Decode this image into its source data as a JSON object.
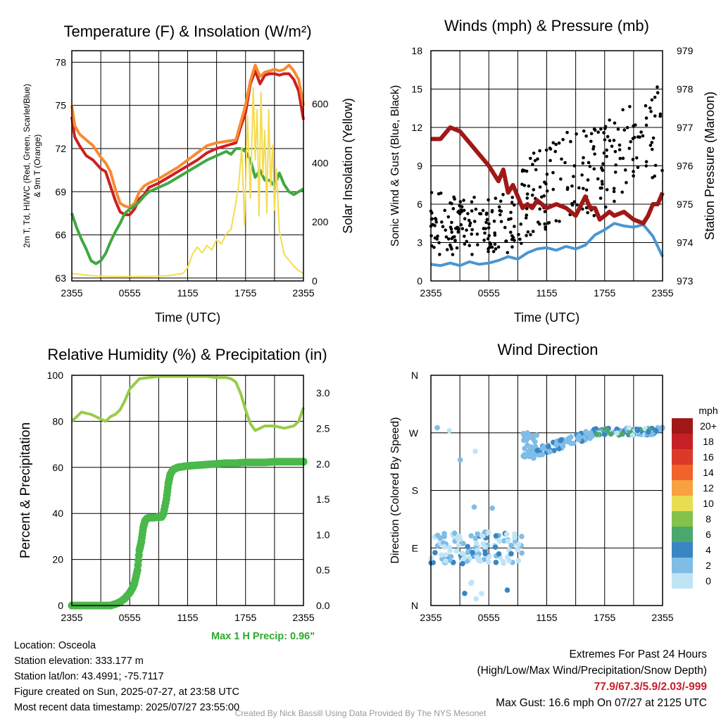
{
  "colors": {
    "red": "#cc2020",
    "green": "#40a840",
    "orange": "#f88a30",
    "yellow": "#f4dc50",
    "maroon": "#a01818",
    "blue": "#4a96d2",
    "black": "#000000",
    "extremes": "#c8202a",
    "rh": "#98cc48",
    "precip": "#4ab84a"
  },
  "footer": {
    "max_precip": "Max 1 H Precip: 0.96\"",
    "location": "Location: Osceola",
    "elevation": "Station elevation: 333.177 m",
    "latlon": "Station lat/lon: 43.4991; -75.7117",
    "created": "Figure created on Sun, 2025-07-27, at 23:58 UTC",
    "recent": "Most recent data timestamp: 2025/07/27 23:55:00",
    "extremes_title": "Extremes For Past 24 Hours",
    "extremes_subtitle": "(High/Low/Max Wind/Precipitation/Snow Depth)",
    "extremes_values": "77.9/67.3/5.9/2.03/-999",
    "max_gust": "Max Gust: 16.6 mph On 07/27 at 2125 UTC",
    "credit": "Created By Nick Bassill Using Data Provided By The NYS Mesonet"
  },
  "chart_data": [
    {
      "type": "line",
      "title": "Temperature (F) & Insolation (W/m²)",
      "xlabel": "Time (UTC)",
      "ylabel": "2m T, Td, HI/WC (Red, Green, Scarlet/Blue) & 9m T (Orange)",
      "y2label": "Solar Insolation (Yellow)",
      "x_ticks": [
        "2355",
        "0555",
        "1155",
        "1755",
        "2355"
      ],
      "xlim_hours": [
        0,
        24
      ],
      "ylim": [
        62.8,
        78.8
      ],
      "y_ticks": [
        63,
        66,
        69,
        72,
        75,
        78
      ],
      "y2lim": [
        0,
        780
      ],
      "y2_ticks": [
        0,
        200,
        400,
        600
      ],
      "grid": true,
      "series": [
        {
          "axis": "left",
          "color": "red",
          "x": [
            0,
            0.3,
            0.8,
            1.5,
            2.2,
            3,
            3.5,
            4,
            4.5,
            5,
            5.5,
            6,
            6.5,
            7,
            7.5,
            8,
            9,
            10,
            11,
            12,
            13,
            14,
            15,
            16,
            17,
            17.5,
            18,
            18.5,
            19,
            19.5,
            20,
            20.5,
            21,
            21.5,
            22,
            22.5,
            23,
            23.5,
            24
          ],
          "values": [
            74.2,
            72.8,
            72.2,
            71.5,
            71.2,
            70.6,
            70.4,
            69.4,
            68.4,
            67.6,
            67.4,
            67.4,
            67.8,
            68.5,
            68.8,
            69.3,
            69.6,
            70.0,
            70.4,
            70.8,
            71.2,
            71.7,
            72.0,
            72.2,
            72.4,
            73.5,
            74.5,
            76.5,
            77.4,
            76.5,
            77.1,
            77.2,
            77.2,
            77.1,
            77.2,
            77.2,
            76.8,
            76.0,
            74.0
          ]
        },
        {
          "axis": "left",
          "color": "orange",
          "x": [
            0,
            0.3,
            0.8,
            1.5,
            2.2,
            3,
            3.5,
            4,
            4.5,
            5,
            5.5,
            6,
            6.5,
            7,
            7.5,
            8,
            9,
            10,
            11,
            12,
            13,
            14,
            15,
            16,
            17,
            17.5,
            18,
            18.5,
            19,
            19.5,
            20,
            20.5,
            21,
            21.5,
            22,
            22.5,
            23,
            23.5,
            24
          ],
          "values": [
            75.0,
            73.6,
            73.0,
            72.6,
            72.2,
            71.4,
            71.0,
            70.4,
            69.2,
            68.2,
            68.0,
            67.9,
            68.2,
            69.0,
            69.4,
            69.6,
            69.9,
            70.3,
            70.7,
            71.2,
            71.7,
            72.2,
            72.4,
            72.5,
            72.6,
            73.8,
            75.0,
            76.7,
            77.8,
            77.0,
            77.3,
            77.4,
            77.5,
            77.4,
            77.5,
            77.8,
            77.4,
            76.8,
            75.0
          ]
        },
        {
          "axis": "left",
          "color": "green",
          "x": [
            0,
            0.5,
            1,
            1.5,
            2,
            2.5,
            3,
            3.5,
            4,
            4.5,
            5,
            5.5,
            6,
            6.5,
            7,
            7.5,
            8,
            9,
            10,
            11,
            12,
            13,
            14,
            15,
            16,
            16.5,
            17,
            17.5,
            18,
            18.5,
            19,
            19.5,
            20,
            20.5,
            21,
            21.5,
            22,
            22.5,
            23,
            23.5,
            24
          ],
          "values": [
            67.5,
            66.5,
            65.7,
            65.0,
            64.2,
            64.0,
            64.2,
            64.7,
            65.5,
            66.2,
            66.8,
            67.5,
            67.8,
            68.0,
            68.3,
            68.7,
            69.0,
            69.3,
            69.6,
            70.0,
            70.4,
            70.8,
            71.2,
            71.5,
            71.8,
            71.6,
            72.0,
            72.0,
            71.8,
            71.2,
            70.0,
            70.5,
            69.8,
            69.8,
            69.4,
            70.3,
            69.5,
            69.0,
            68.8,
            69.0,
            69.2
          ]
        },
        {
          "axis": "right",
          "color": "yellow",
          "x": [
            0,
            2,
            4,
            6,
            8,
            10,
            11.5,
            12,
            12.5,
            13,
            13.5,
            14,
            14.5,
            15,
            15.5,
            16,
            16.5,
            17,
            17.3,
            17.6,
            17.9,
            18.2,
            18.5,
            18.8,
            19.0,
            19.2,
            19.4,
            19.6,
            19.8,
            20.0,
            20.2,
            20.4,
            20.6,
            20.8,
            21.0,
            21.2,
            21.5,
            22,
            22.5,
            23,
            23.5,
            24
          ],
          "values": [
            25,
            18,
            15,
            15,
            15,
            18,
            25,
            45,
            90,
            115,
            95,
            120,
            105,
            140,
            125,
            160,
            175,
            265,
            330,
            450,
            190,
            560,
            280,
            655,
            410,
            580,
            220,
            640,
            360,
            510,
            230,
            580,
            320,
            460,
            240,
            380,
            170,
            90,
            70,
            50,
            35,
            25
          ]
        }
      ]
    },
    {
      "type": "line",
      "title": "Winds (mph) & Pressure (mb)",
      "xlabel": "Time (UTC)",
      "ylabel": "Sonic Wind & Gust (Blue, Black)",
      "y2label": "Station Pressure (Maroon)",
      "x_ticks": [
        "2355",
        "0555",
        "1155",
        "1755",
        "2355"
      ],
      "ylim": [
        0,
        18
      ],
      "y_ticks": [
        0,
        3,
        6,
        9,
        12,
        15,
        18
      ],
      "y2lim": [
        973,
        979
      ],
      "y2_ticks": [
        973,
        974,
        975,
        976,
        977,
        978,
        979
      ],
      "grid": true,
      "series": [
        {
          "axis": "left",
          "color": "blue",
          "x": [
            0,
            1,
            2,
            3,
            4,
            5,
            6,
            7,
            8,
            9,
            10,
            11,
            12,
            13,
            14,
            15,
            16,
            17,
            18,
            19,
            20,
            21,
            22,
            23,
            24
          ],
          "values": [
            1.3,
            1.2,
            1.4,
            1.2,
            1.5,
            1.3,
            1.4,
            1.6,
            1.9,
            1.7,
            2.2,
            2.5,
            2.6,
            2.4,
            2.7,
            2.5,
            2.8,
            3.6,
            4.0,
            4.5,
            4.3,
            4.2,
            4.4,
            3.5,
            1.9
          ]
        },
        {
          "axis": "right",
          "color": "maroon",
          "x": [
            0,
            1,
            2,
            3,
            4,
            5,
            6,
            7,
            7.5,
            8,
            8.5,
            9,
            9.5,
            10,
            10.5,
            11,
            11.5,
            12,
            13,
            14,
            15,
            16,
            16.5,
            17,
            17.5,
            18,
            18.5,
            19,
            20,
            21,
            22,
            22.5,
            23,
            23.5,
            24
          ],
          "values": [
            976.7,
            976.7,
            977.0,
            976.9,
            976.6,
            976.3,
            976.0,
            975.6,
            975.9,
            975.3,
            975.5,
            975.2,
            974.9,
            975.0,
            974.9,
            975.1,
            975.0,
            974.9,
            975.0,
            974.9,
            974.7,
            975.2,
            974.9,
            974.9,
            974.6,
            974.7,
            974.8,
            974.7,
            974.8,
            974.6,
            974.5,
            974.7,
            975.0,
            975.0,
            975.3
          ]
        }
      ]
    },
    {
      "type": "line",
      "title": "Relative Humidity (%) & Precipitation (in)",
      "ylabel": "Percent & Precipitation",
      "x_ticks": [
        "2355",
        "0555",
        "1155",
        "1755",
        "2355"
      ],
      "ylim": [
        0,
        100
      ],
      "y_ticks": [
        0,
        20,
        40,
        60,
        80,
        100
      ],
      "y2lim": [
        0,
        3.25
      ],
      "y2_ticks": [
        "0.0",
        "0.5",
        "1.0",
        "1.5",
        "2.0",
        "2.5",
        "3.0"
      ],
      "grid": true,
      "series": [
        {
          "axis": "left",
          "color": "rh",
          "x": [
            0,
            1,
            2,
            3,
            3.5,
            4,
            4.5,
            5,
            5.5,
            6,
            7,
            8,
            9,
            10,
            11,
            12,
            13,
            14,
            15,
            16,
            16.5,
            17,
            17.5,
            18,
            18.5,
            19,
            20,
            21,
            22,
            23,
            23.5,
            24
          ],
          "values": [
            80,
            84,
            83,
            81,
            80,
            82,
            83,
            85,
            89,
            94,
            98.5,
            99,
            99.5,
            99.5,
            99.5,
            99.5,
            99.5,
            99.5,
            99,
            99,
            98.5,
            97,
            92,
            85,
            79,
            76,
            78,
            78,
            77,
            78,
            80,
            86
          ]
        },
        {
          "axis": "right",
          "color": "precip",
          "x": [
            0,
            1,
            2,
            3,
            4,
            4.5,
            5,
            5.5,
            6,
            6.3,
            6.5,
            6.8,
            7,
            7.2,
            7.4,
            7.6,
            7.8,
            8,
            8.5,
            9,
            9.3,
            9.5,
            9.8,
            10,
            10.2,
            10.5,
            11,
            11.5,
            12,
            13,
            14,
            15,
            16,
            17,
            18,
            19,
            20,
            21,
            22,
            23,
            24
          ],
          "values": [
            0,
            0,
            0,
            0,
            0,
            0.02,
            0.05,
            0.1,
            0.18,
            0.25,
            0.32,
            0.5,
            0.78,
            0.9,
            1.1,
            1.2,
            1.23,
            1.24,
            1.24,
            1.25,
            1.25,
            1.3,
            1.5,
            1.72,
            1.85,
            1.92,
            1.95,
            1.96,
            1.97,
            1.98,
            1.99,
            2.0,
            2.01,
            2.01,
            2.02,
            2.02,
            2.02,
            2.03,
            2.03,
            2.03,
            2.03
          ]
        }
      ]
    },
    {
      "type": "scatter",
      "title": "Wind Direction",
      "ylabel": "Direction (Colored By Speed)",
      "x_ticks": [
        "2355",
        "0555",
        "1155",
        "1755",
        "2355"
      ],
      "y_ticks": [
        "N",
        "W",
        "S",
        "E",
        "N"
      ],
      "ylim": [
        0,
        360
      ],
      "grid": true,
      "colorbar": {
        "unit": "mph",
        "labels": [
          "20+",
          "18",
          "16",
          "14",
          "12",
          "10",
          "8",
          "6",
          "4",
          "2",
          "0"
        ],
        "colors": [
          "#a01818",
          "#c62027",
          "#dc3a28",
          "#f0642a",
          "#f7a140",
          "#e6dd52",
          "#84c24a",
          "#4aa86e",
          "#3a86c4",
          "#80bde6",
          "#c0e4f6"
        ]
      }
    }
  ]
}
